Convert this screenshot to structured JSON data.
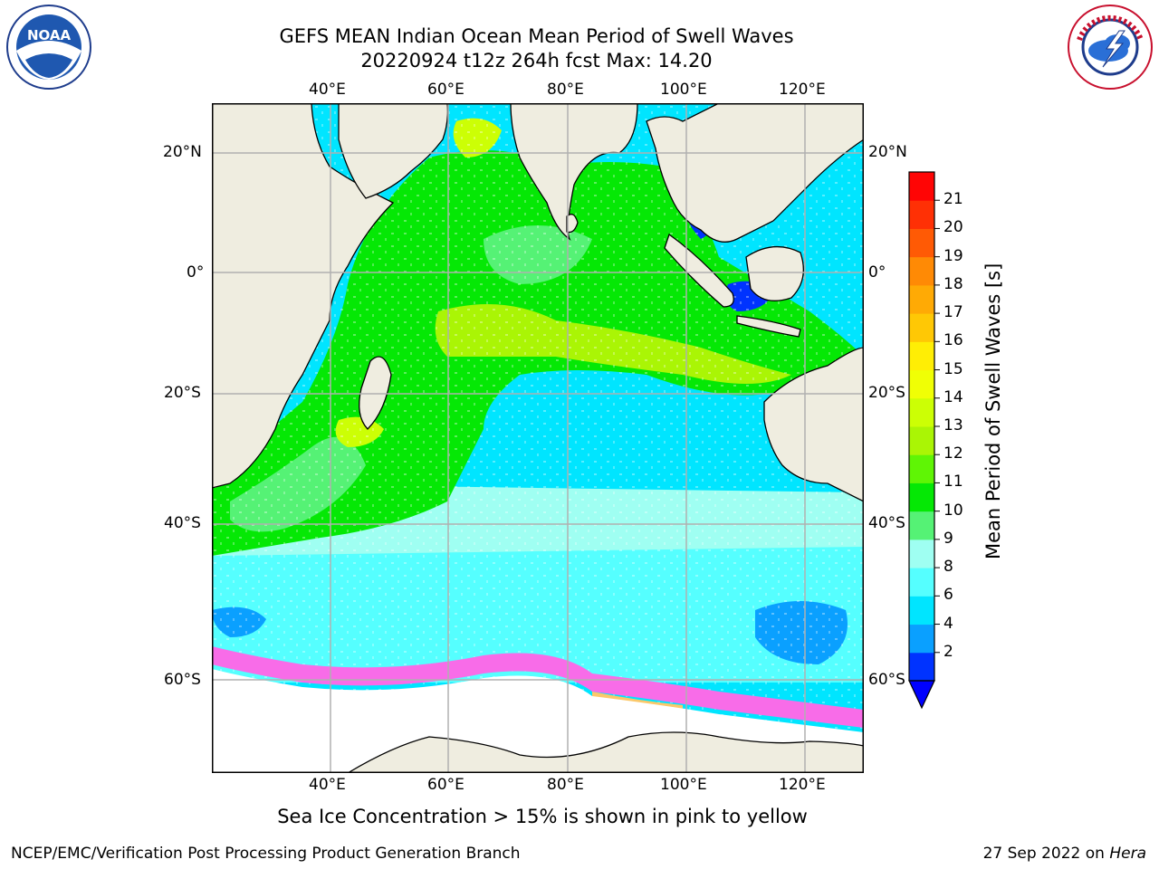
{
  "title_line1": "GEFS MEAN Indian Ocean Mean Period of Swell Waves",
  "title_line2": "20220924 t12z 264h fcst   Max: 14.20",
  "lon_labels_top": [
    "40°E",
    "60°E",
    "80°E",
    "100°E",
    "120°E"
  ],
  "lon_labels_bottom": [
    "40°E",
    "60°E",
    "80°E",
    "100°E",
    "120°E"
  ],
  "lat_labels_left": [
    "20°N",
    "0°",
    "20°S",
    "40°S",
    "60°S"
  ],
  "lat_labels_right": [
    "20°N",
    "0°",
    "20°S",
    "40°S",
    "60°S"
  ],
  "colorbar": {
    "label": "Mean Period of Swell Waves [s]",
    "ticks": [
      "2",
      "4",
      "6",
      "8",
      "9",
      "10",
      "11",
      "12",
      "13",
      "14",
      "15",
      "16",
      "17",
      "18",
      "19",
      "20",
      "21"
    ],
    "colors": [
      "#0033ff",
      "#0aa0ff",
      "#00e5ff",
      "#55ffff",
      "#9ffff2",
      "#55f275",
      "#05e805",
      "#5ff505",
      "#aaf505",
      "#ccff05",
      "#f0ff05",
      "#ffee05",
      "#ffc805",
      "#ffaa05",
      "#ff8a05",
      "#ff5a05",
      "#ff3005",
      "#ff0505"
    ],
    "extend_color": "#0000ff"
  },
  "colors": {
    "land": "#efede0",
    "ice_area": "#ffffff",
    "grid": "#b0b0b0",
    "ice_edge_pink": "#f86ce8",
    "ice_edge_yellow": "#fbc86a"
  },
  "caption": "Sea Ice Concentration > 15% is shown in pink to yellow",
  "footer_left": "NCEP/EMC/Verification Post Processing Product Generation Branch",
  "footer_right_date": "27 Sep 2022 on",
  "footer_right_host": "Hera",
  "logos": {
    "left": "noaa-logo",
    "right": "national-weather-service-logo"
  },
  "logo_text": {
    "noaa": "NOAA",
    "nws": "NATIONAL WEATHER SERVICE"
  }
}
